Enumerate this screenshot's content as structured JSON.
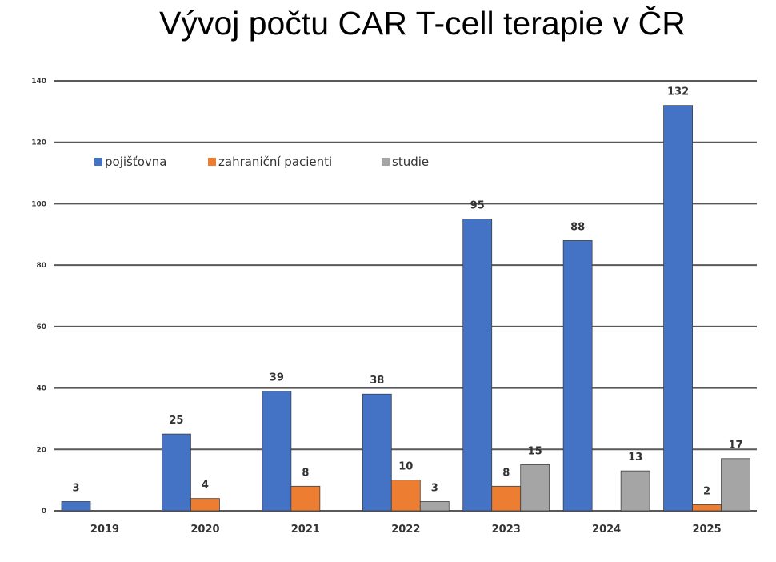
{
  "title": "Vývoj počtu CAR T-cell terapie v ČR",
  "chart_data": {
    "type": "bar",
    "title": "Vývoj počtu CAR T-cell terapie v ČR",
    "xlabel": "",
    "ylabel": "",
    "ylim": [
      0,
      140
    ],
    "yticks": [
      0,
      20,
      40,
      60,
      80,
      100,
      120,
      140
    ],
    "grid": true,
    "legend_position": "top-left",
    "categories": [
      "2019",
      "2020",
      "2021",
      "2022",
      "2023",
      "2024",
      "2025"
    ],
    "series": [
      {
        "name": "pojišťovna",
        "color": "#4472C4",
        "values": [
          3,
          25,
          39,
          38,
          95,
          88,
          132
        ]
      },
      {
        "name": "zahraniční pacienti",
        "color": "#ED7D31",
        "values": [
          null,
          4,
          8,
          10,
          8,
          null,
          2
        ]
      },
      {
        "name": "studie",
        "color": "#A5A5A5",
        "values": [
          null,
          null,
          null,
          3,
          15,
          13,
          17
        ]
      }
    ]
  }
}
